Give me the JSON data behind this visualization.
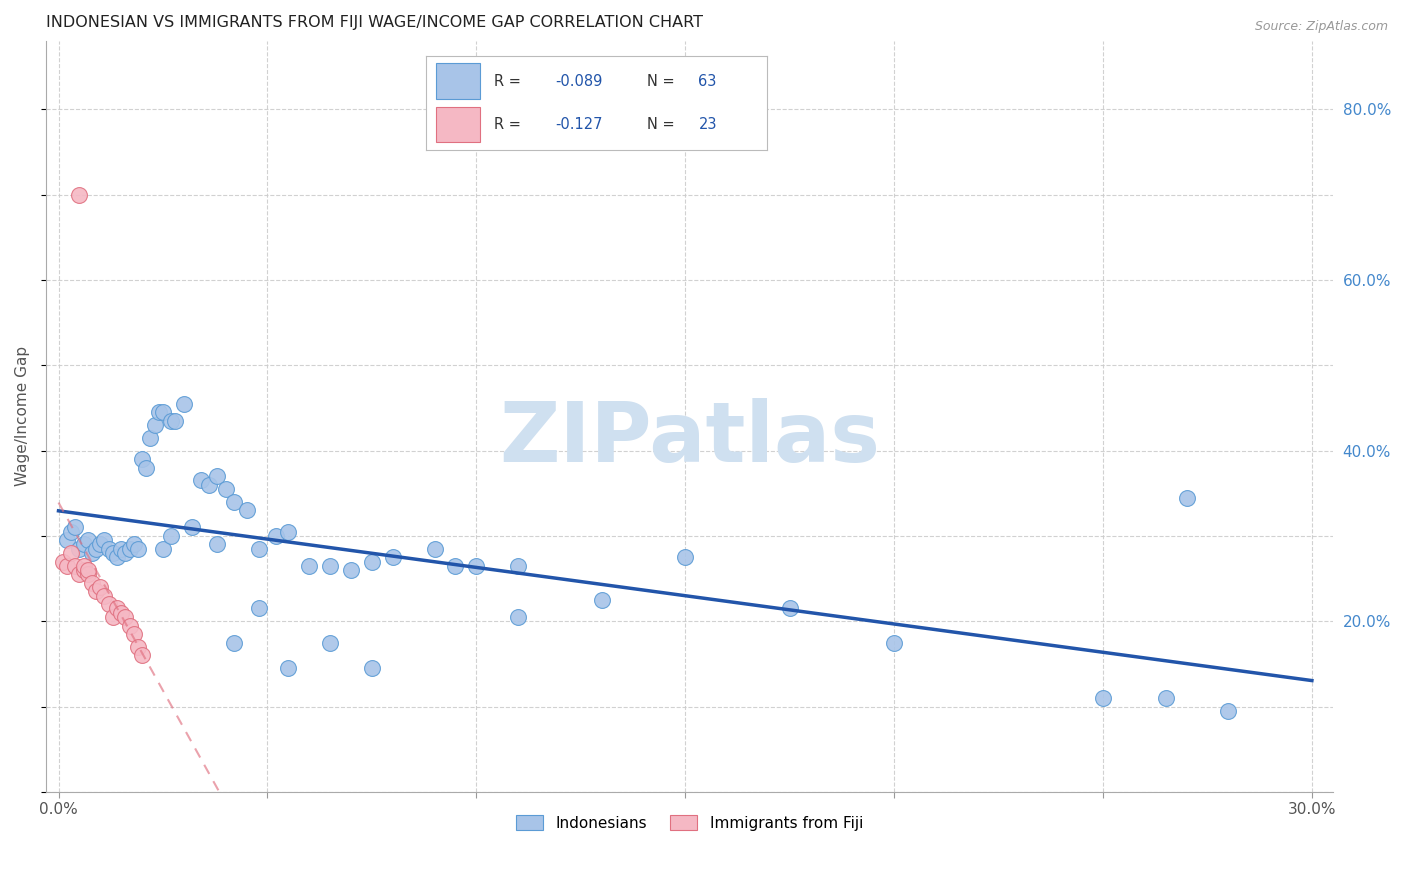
{
  "title": "INDONESIAN VS IMMIGRANTS FROM FIJI WAGE/INCOME GAP CORRELATION CHART",
  "source": "Source: ZipAtlas.com",
  "ylabel": "Wage/Income Gap",
  "xlim": [
    -0.003,
    0.305
  ],
  "ylim": [
    0.0,
    0.88
  ],
  "right_ytick_vals": [
    0.2,
    0.4,
    0.6,
    0.8
  ],
  "right_ytick_labels": [
    "20.0%",
    "40.0%",
    "60.0%",
    "80.0%"
  ],
  "xtick_vals": [
    0.0,
    0.05,
    0.1,
    0.15,
    0.2,
    0.25,
    0.3
  ],
  "xtick_labels": [
    "0.0%",
    "",
    "",
    "",
    "",
    "",
    "30.0%"
  ],
  "ind_color": "#a8c4e8",
  "ind_edge": "#5b9bd5",
  "ind_line": "#2255aa",
  "fij_color": "#f5b8c4",
  "fij_edge": "#e07080",
  "fij_line": "#e07080",
  "watermark_color": "#cfe0f0",
  "bg_color": "#ffffff",
  "grid_color": "#cccccc",
  "ind_R": "-0.089",
  "ind_N": "63",
  "fij_R": "-0.127",
  "fij_N": "23",
  "legend_labels": [
    "Indonesians",
    "Immigrants from Fiji"
  ],
  "ind_x": [
    0.002,
    0.003,
    0.004,
    0.005,
    0.006,
    0.007,
    0.008,
    0.009,
    0.01,
    0.011,
    0.012,
    0.013,
    0.014,
    0.015,
    0.016,
    0.017,
    0.018,
    0.019,
    0.02,
    0.021,
    0.022,
    0.023,
    0.024,
    0.025,
    0.027,
    0.028,
    0.03,
    0.032,
    0.034,
    0.036,
    0.038,
    0.04,
    0.042,
    0.045,
    0.048,
    0.052,
    0.055,
    0.06,
    0.065,
    0.07,
    0.075,
    0.08,
    0.09,
    0.1,
    0.11,
    0.13,
    0.15,
    0.2,
    0.265,
    0.27,
    0.28,
    0.025,
    0.027,
    0.038,
    0.042,
    0.048,
    0.055,
    0.065,
    0.075,
    0.095,
    0.11,
    0.175,
    0.25
  ],
  "ind_y": [
    0.295,
    0.305,
    0.31,
    0.285,
    0.29,
    0.295,
    0.28,
    0.285,
    0.29,
    0.295,
    0.285,
    0.28,
    0.275,
    0.285,
    0.28,
    0.285,
    0.29,
    0.285,
    0.39,
    0.38,
    0.415,
    0.43,
    0.445,
    0.445,
    0.435,
    0.435,
    0.455,
    0.31,
    0.365,
    0.36,
    0.37,
    0.355,
    0.34,
    0.33,
    0.285,
    0.3,
    0.305,
    0.265,
    0.265,
    0.26,
    0.27,
    0.275,
    0.285,
    0.265,
    0.265,
    0.225,
    0.275,
    0.175,
    0.11,
    0.345,
    0.095,
    0.285,
    0.3,
    0.29,
    0.175,
    0.215,
    0.145,
    0.175,
    0.145,
    0.265,
    0.205,
    0.215,
    0.11
  ],
  "fij_x": [
    0.001,
    0.002,
    0.003,
    0.004,
    0.005,
    0.006,
    0.006,
    0.007,
    0.007,
    0.008,
    0.009,
    0.01,
    0.011,
    0.012,
    0.013,
    0.014,
    0.015,
    0.016,
    0.017,
    0.018,
    0.019,
    0.005,
    0.02
  ],
  "fij_y": [
    0.27,
    0.265,
    0.28,
    0.265,
    0.255,
    0.26,
    0.265,
    0.255,
    0.26,
    0.245,
    0.235,
    0.24,
    0.23,
    0.22,
    0.205,
    0.215,
    0.21,
    0.205,
    0.195,
    0.185,
    0.17,
    0.7,
    0.16
  ]
}
